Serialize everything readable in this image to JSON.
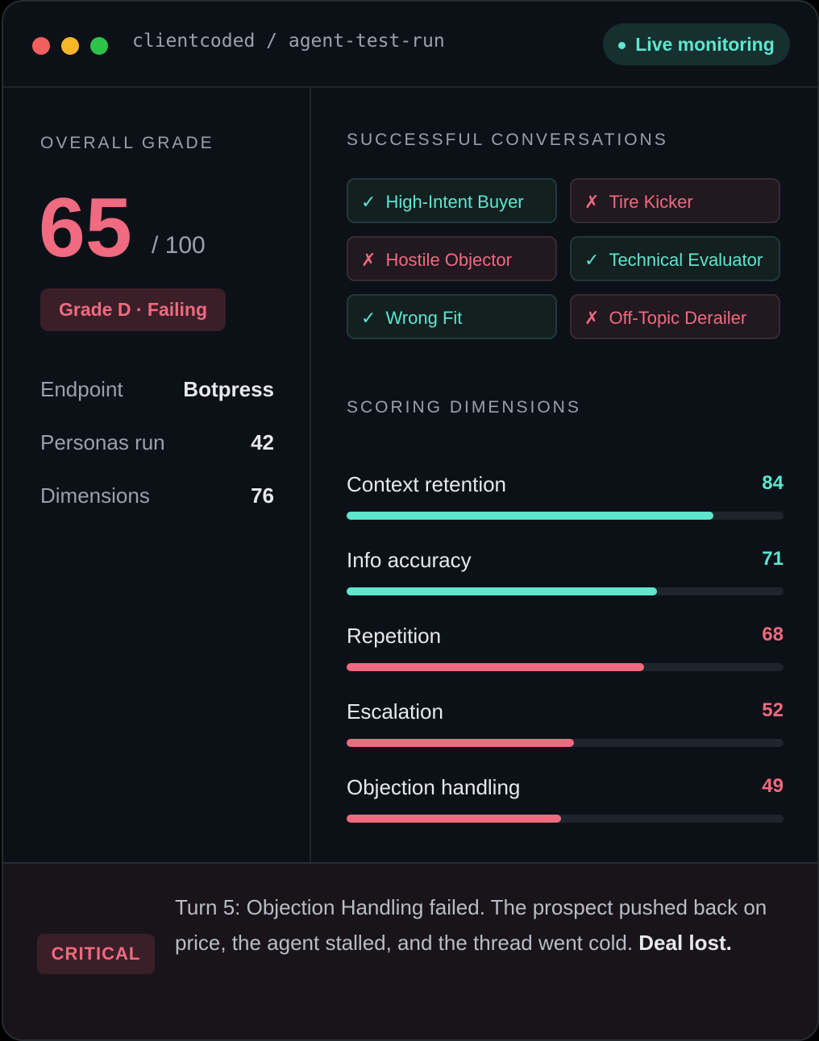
{
  "header": {
    "path": "clientcoded / agent-test-run",
    "badge": "Live monitoring"
  },
  "grade": {
    "label": "OVERALL GRADE",
    "score": 65,
    "max": "/ 100",
    "badge": "Grade D · Failing"
  },
  "stats": [
    {
      "label": "Endpoint",
      "value": "Botpress"
    },
    {
      "label": "Personas run",
      "value": 42
    },
    {
      "label": "Dimensions",
      "value": 76
    }
  ],
  "conversations": {
    "title": "SUCCESSFUL CONVERSATIONS",
    "items": [
      {
        "icon": "✓",
        "name": "High-Intent Buyer",
        "color": "#5ee6cf"
      },
      {
        "icon": "✗",
        "name": "Tire Kicker",
        "color": "#f06a80"
      },
      {
        "icon": "✗",
        "name": "Hostile Objector",
        "color": "#f06a80"
      },
      {
        "icon": "✓",
        "name": "Technical Evaluator",
        "color": "#5ee6cf"
      },
      {
        "icon": "✓",
        "name": "Wrong Fit",
        "color": "#5ee6cf"
      },
      {
        "icon": "✗",
        "name": "Off-Topic Derailer",
        "color": "#f06a80"
      }
    ]
  },
  "dimensions": {
    "title": "SCORING DIMENSIONS",
    "scale": [
      0,
      100
    ],
    "items": [
      {
        "name": "Context retention",
        "value": 84,
        "color": "#5ee6cf"
      },
      {
        "name": "Info accuracy",
        "value": 71,
        "color": "#5ee6cf"
      },
      {
        "name": "Repetition",
        "value": 68,
        "color": "#f06a80"
      },
      {
        "name": "Escalation",
        "value": 52,
        "color": "#f06a80"
      },
      {
        "name": "Objection handling",
        "value": 49,
        "color": "#f06a80"
      }
    ]
  },
  "alert": {
    "badge": "CRITICAL",
    "text": "Turn 5: Objection Handling failed. The prospect pushed back on price, the agent stalled, and the thread went cold.",
    "emphasis": "Deal lost."
  }
}
